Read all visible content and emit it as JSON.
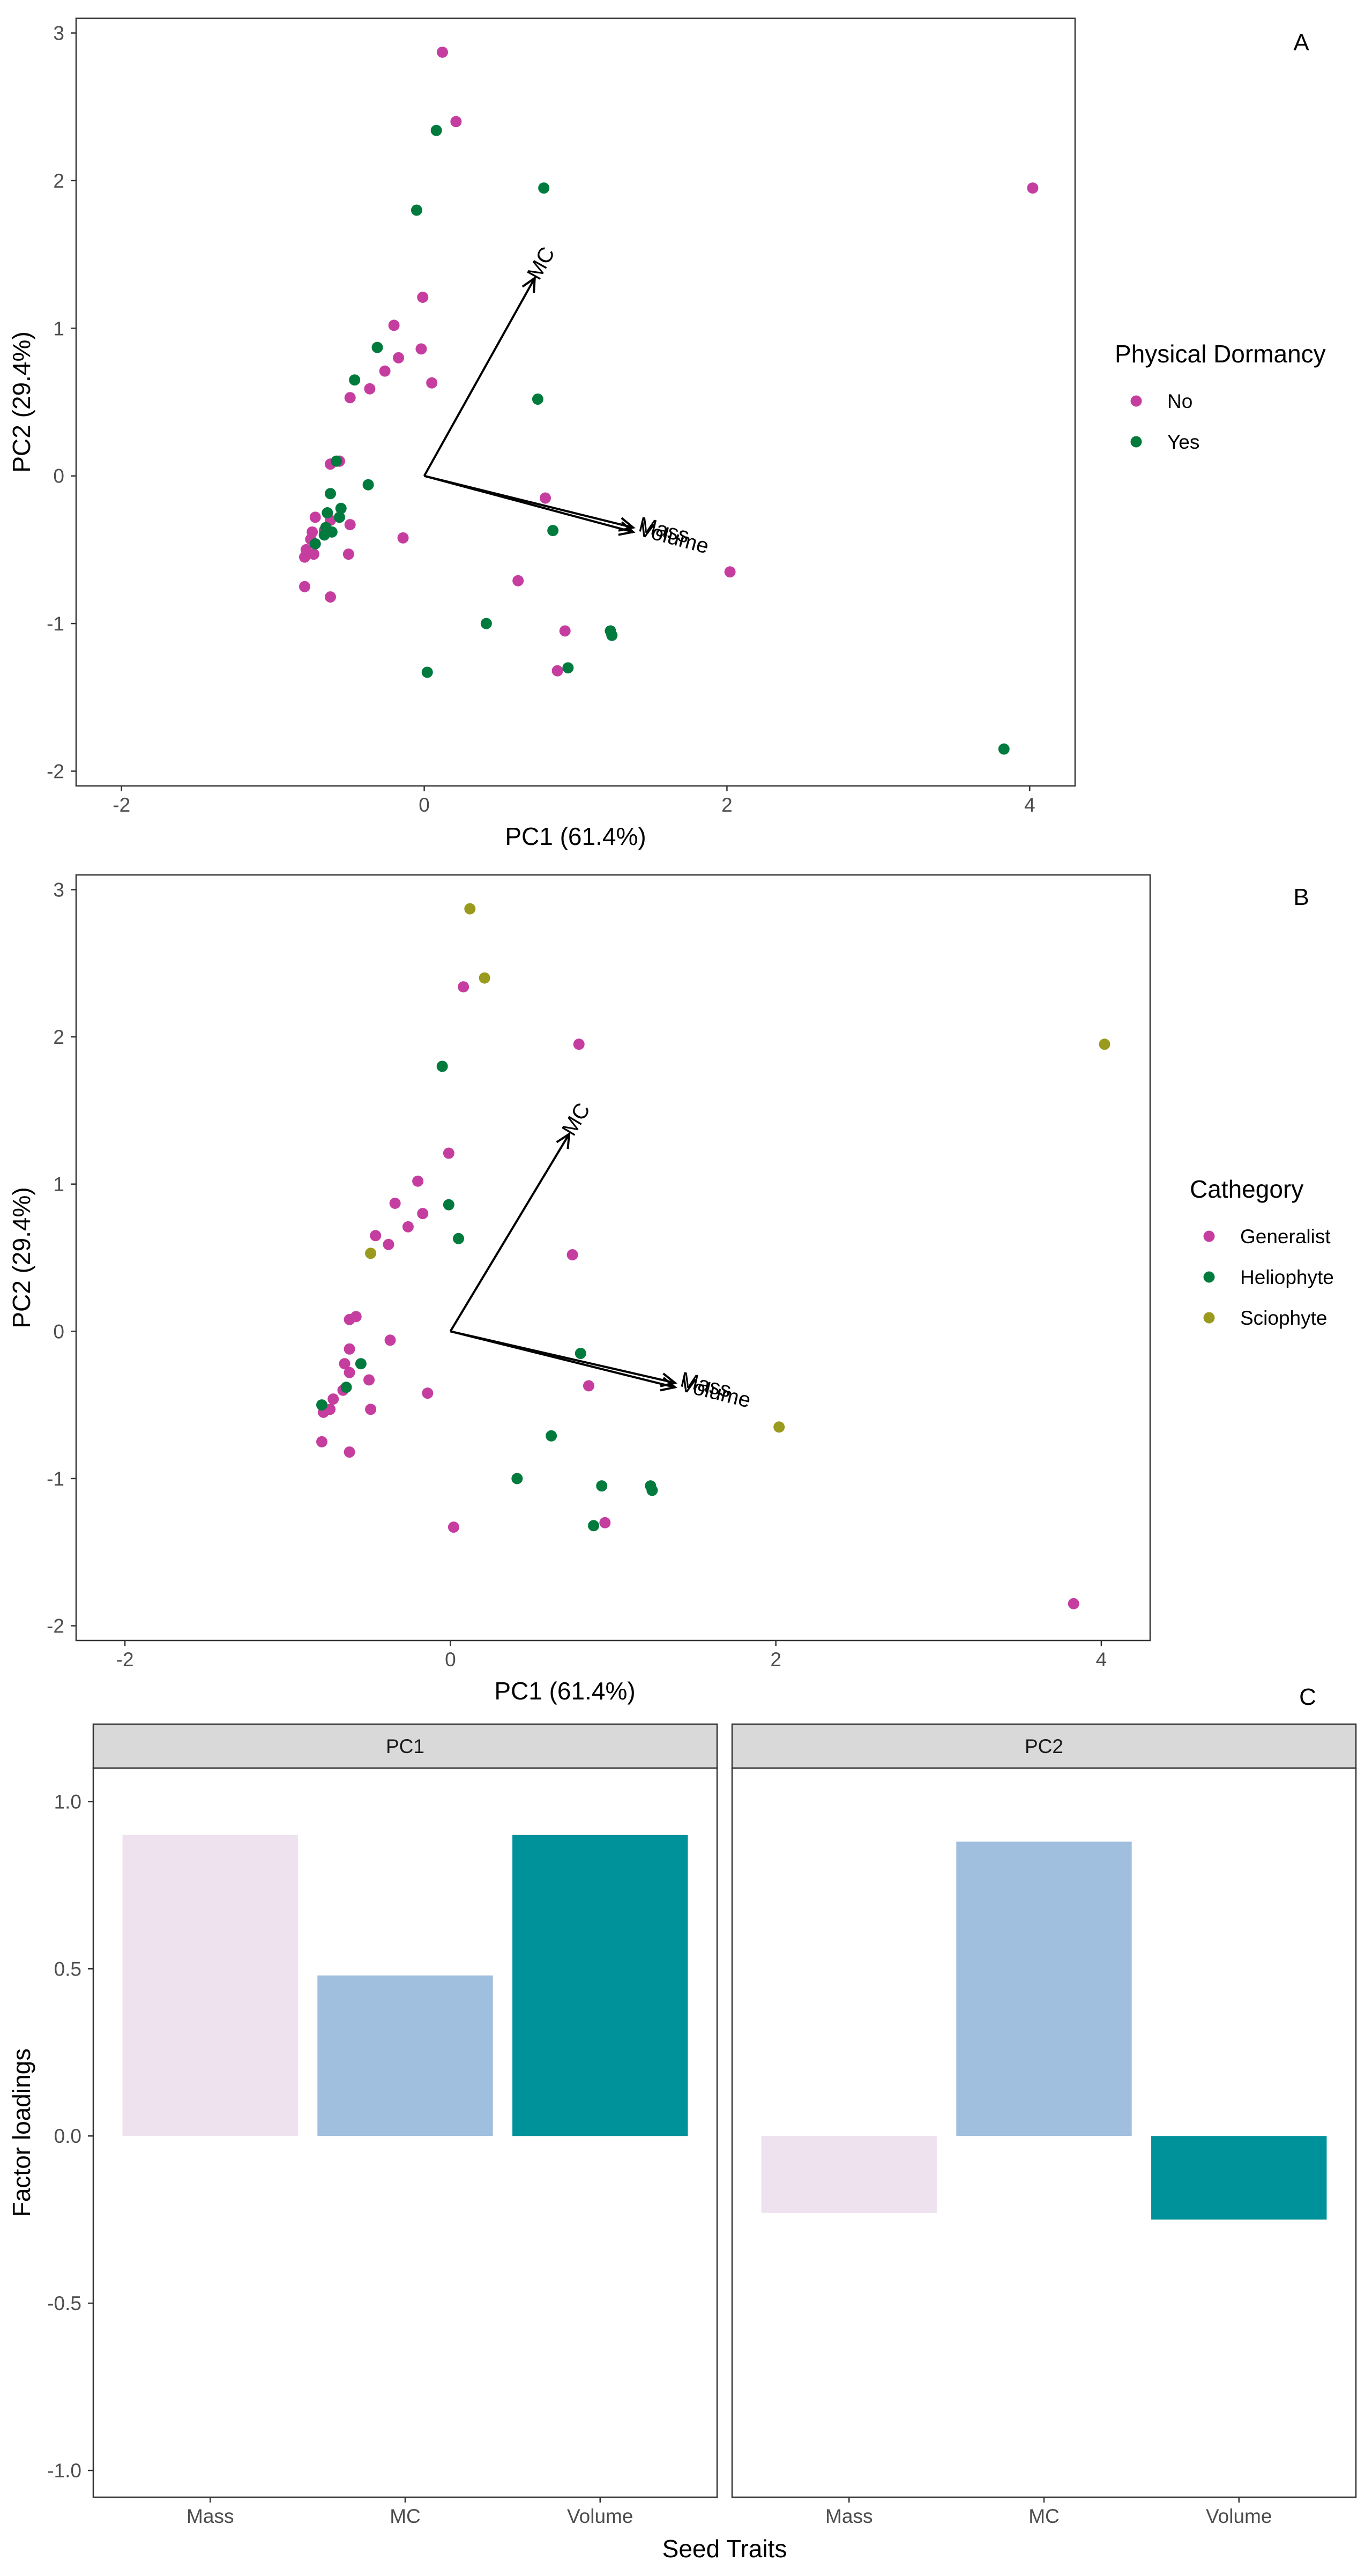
{
  "colors": {
    "no": "#C63DA0",
    "yes": "#007A3D",
    "generalist": "#C63DA0",
    "heliophyte": "#007A3D",
    "sciophyte": "#9A9A1E",
    "mass": "#EFE2EF",
    "mc": "#A0BEDD",
    "volume": "#00929B",
    "strip": "#D9D9D9"
  },
  "chart_data": [
    {
      "type": "scatter",
      "panel_label": "A",
      "xlabel": "PC1 (61.4%)",
      "ylabel": "PC2 (29.4%)",
      "xlim": [
        -2.3,
        4.3
      ],
      "ylim": [
        -2.1,
        3.1
      ],
      "xticks": [
        -2,
        0,
        2,
        4
      ],
      "yticks": [
        -2,
        -1,
        0,
        1,
        2,
        3
      ],
      "grid": false,
      "legend": {
        "title": "Physical Dormancy",
        "position": "right",
        "entries": [
          {
            "label": "No",
            "color_key": "no"
          },
          {
            "label": "Yes",
            "color_key": "yes"
          }
        ]
      },
      "arrows": [
        {
          "label": "MC",
          "x": 0.73,
          "y": 1.34
        },
        {
          "label": "Mass",
          "x": 1.38,
          "y": -0.35
        },
        {
          "label": "Volume",
          "x": 1.38,
          "y": -0.38
        }
      ],
      "series": [
        {
          "name": "No",
          "color_key": "no",
          "points": [
            [
              0.12,
              2.87
            ],
            [
              0.21,
              2.4
            ],
            [
              4.02,
              1.95
            ],
            [
              -0.01,
              1.21
            ],
            [
              -0.2,
              1.02
            ],
            [
              -0.02,
              0.86
            ],
            [
              -0.17,
              0.8
            ],
            [
              -0.26,
              0.71
            ],
            [
              0.05,
              0.63
            ],
            [
              -0.36,
              0.59
            ],
            [
              -0.49,
              0.53
            ],
            [
              -0.62,
              0.08
            ],
            [
              -0.56,
              0.1
            ],
            [
              0.8,
              -0.15
            ],
            [
              -0.14,
              -0.42
            ],
            [
              -0.49,
              -0.33
            ],
            [
              -0.5,
              -0.53
            ],
            [
              -0.62,
              -0.3
            ],
            [
              -0.66,
              -0.37
            ],
            [
              -0.72,
              -0.28
            ],
            [
              -0.74,
              -0.38
            ],
            [
              -0.75,
              -0.43
            ],
            [
              -0.78,
              -0.5
            ],
            [
              -0.73,
              -0.53
            ],
            [
              -0.79,
              -0.55
            ],
            [
              -0.79,
              -0.75
            ],
            [
              -0.62,
              -0.82
            ],
            [
              0.62,
              -0.71
            ],
            [
              2.02,
              -0.65
            ],
            [
              0.93,
              -1.05
            ],
            [
              0.88,
              -1.32
            ]
          ]
        },
        {
          "name": "Yes",
          "color_key": "yes",
          "points": [
            [
              0.08,
              2.34
            ],
            [
              0.79,
              1.95
            ],
            [
              -0.05,
              1.8
            ],
            [
              -0.31,
              0.87
            ],
            [
              -0.46,
              0.65
            ],
            [
              0.75,
              0.52
            ],
            [
              -0.58,
              0.1
            ],
            [
              -0.37,
              -0.06
            ],
            [
              -0.62,
              -0.12
            ],
            [
              -0.55,
              -0.22
            ],
            [
              -0.56,
              -0.28
            ],
            [
              -0.64,
              -0.25
            ],
            [
              -0.65,
              -0.35
            ],
            [
              -0.61,
              -0.38
            ],
            [
              -0.66,
              -0.4
            ],
            [
              -0.72,
              -0.46
            ],
            [
              0.85,
              -0.37
            ],
            [
              0.41,
              -1.0
            ],
            [
              1.23,
              -1.05
            ],
            [
              1.24,
              -1.08
            ],
            [
              0.95,
              -1.3
            ],
            [
              0.02,
              -1.33
            ],
            [
              3.83,
              -1.85
            ]
          ]
        }
      ]
    },
    {
      "type": "scatter",
      "panel_label": "B",
      "xlabel": "PC1 (61.4%)",
      "ylabel": "PC2 (29.4%)",
      "xlim": [
        -2.3,
        4.3
      ],
      "ylim": [
        -2.1,
        3.1
      ],
      "xticks": [
        -2,
        0,
        2,
        4
      ],
      "yticks": [
        -2,
        -1,
        0,
        1,
        2,
        3
      ],
      "grid": false,
      "legend": {
        "title": "Cathegory",
        "position": "right",
        "entries": [
          {
            "label": "Generalist",
            "color_key": "generalist"
          },
          {
            "label": "Heliophyte",
            "color_key": "heliophyte"
          },
          {
            "label": "Sciophyte",
            "color_key": "sciophyte"
          }
        ]
      },
      "arrows": [
        {
          "label": "MC",
          "x": 0.73,
          "y": 1.34
        },
        {
          "label": "Mass",
          "x": 1.38,
          "y": -0.35
        },
        {
          "label": "Volume",
          "x": 1.38,
          "y": -0.38
        }
      ],
      "series": [
        {
          "name": "Generalist",
          "color_key": "generalist",
          "points": [
            [
              0.08,
              2.34
            ],
            [
              0.79,
              1.95
            ],
            [
              -0.01,
              1.21
            ],
            [
              -0.2,
              1.02
            ],
            [
              -0.34,
              0.87
            ],
            [
              -0.26,
              0.71
            ],
            [
              -0.17,
              0.8
            ],
            [
              -0.46,
              0.65
            ],
            [
              -0.38,
              0.59
            ],
            [
              0.75,
              0.52
            ],
            [
              -0.62,
              0.08
            ],
            [
              -0.58,
              0.1
            ],
            [
              -0.37,
              -0.06
            ],
            [
              -0.62,
              -0.12
            ],
            [
              -0.65,
              -0.22
            ],
            [
              -0.62,
              -0.28
            ],
            [
              -0.5,
              -0.33
            ],
            [
              -0.14,
              -0.42
            ],
            [
              -0.66,
              -0.4
            ],
            [
              -0.72,
              -0.46
            ],
            [
              -0.49,
              -0.53
            ],
            [
              -0.78,
              -0.55
            ],
            [
              -0.74,
              -0.53
            ],
            [
              0.85,
              -0.37
            ],
            [
              -0.79,
              -0.75
            ],
            [
              -0.62,
              -0.82
            ],
            [
              0.02,
              -1.33
            ],
            [
              0.95,
              -1.3
            ],
            [
              3.83,
              -1.85
            ]
          ]
        },
        {
          "name": "Heliophyte",
          "color_key": "heliophyte",
          "points": [
            [
              -0.05,
              1.8
            ],
            [
              -0.01,
              0.86
            ],
            [
              0.05,
              0.63
            ],
            [
              -0.55,
              -0.22
            ],
            [
              -0.64,
              -0.38
            ],
            [
              -0.79,
              -0.5
            ],
            [
              0.8,
              -0.15
            ],
            [
              0.62,
              -0.71
            ],
            [
              0.41,
              -1.0
            ],
            [
              0.93,
              -1.05
            ],
            [
              1.23,
              -1.05
            ],
            [
              1.24,
              -1.08
            ],
            [
              0.88,
              -1.32
            ]
          ]
        },
        {
          "name": "Sciophyte",
          "color_key": "sciophyte",
          "points": [
            [
              0.12,
              2.87
            ],
            [
              0.21,
              2.4
            ],
            [
              4.02,
              1.95
            ],
            [
              -0.49,
              0.53
            ],
            [
              2.02,
              -0.65
            ]
          ]
        }
      ]
    },
    {
      "type": "bar",
      "panel_label": "C",
      "xlabel": "Seed Traits",
      "ylabel": "Factor loadings",
      "ylim": [
        -1.08,
        1.1
      ],
      "yticks": [
        -1.0,
        -0.5,
        0.0,
        0.5,
        1.0
      ],
      "grid": false,
      "categories": [
        "Mass",
        "MC",
        "Volume"
      ],
      "facets": [
        {
          "name": "PC1",
          "values": [
            0.9,
            0.48,
            0.9
          ]
        },
        {
          "name": "PC2",
          "values": [
            -0.23,
            0.88,
            -0.25
          ]
        }
      ]
    }
  ]
}
